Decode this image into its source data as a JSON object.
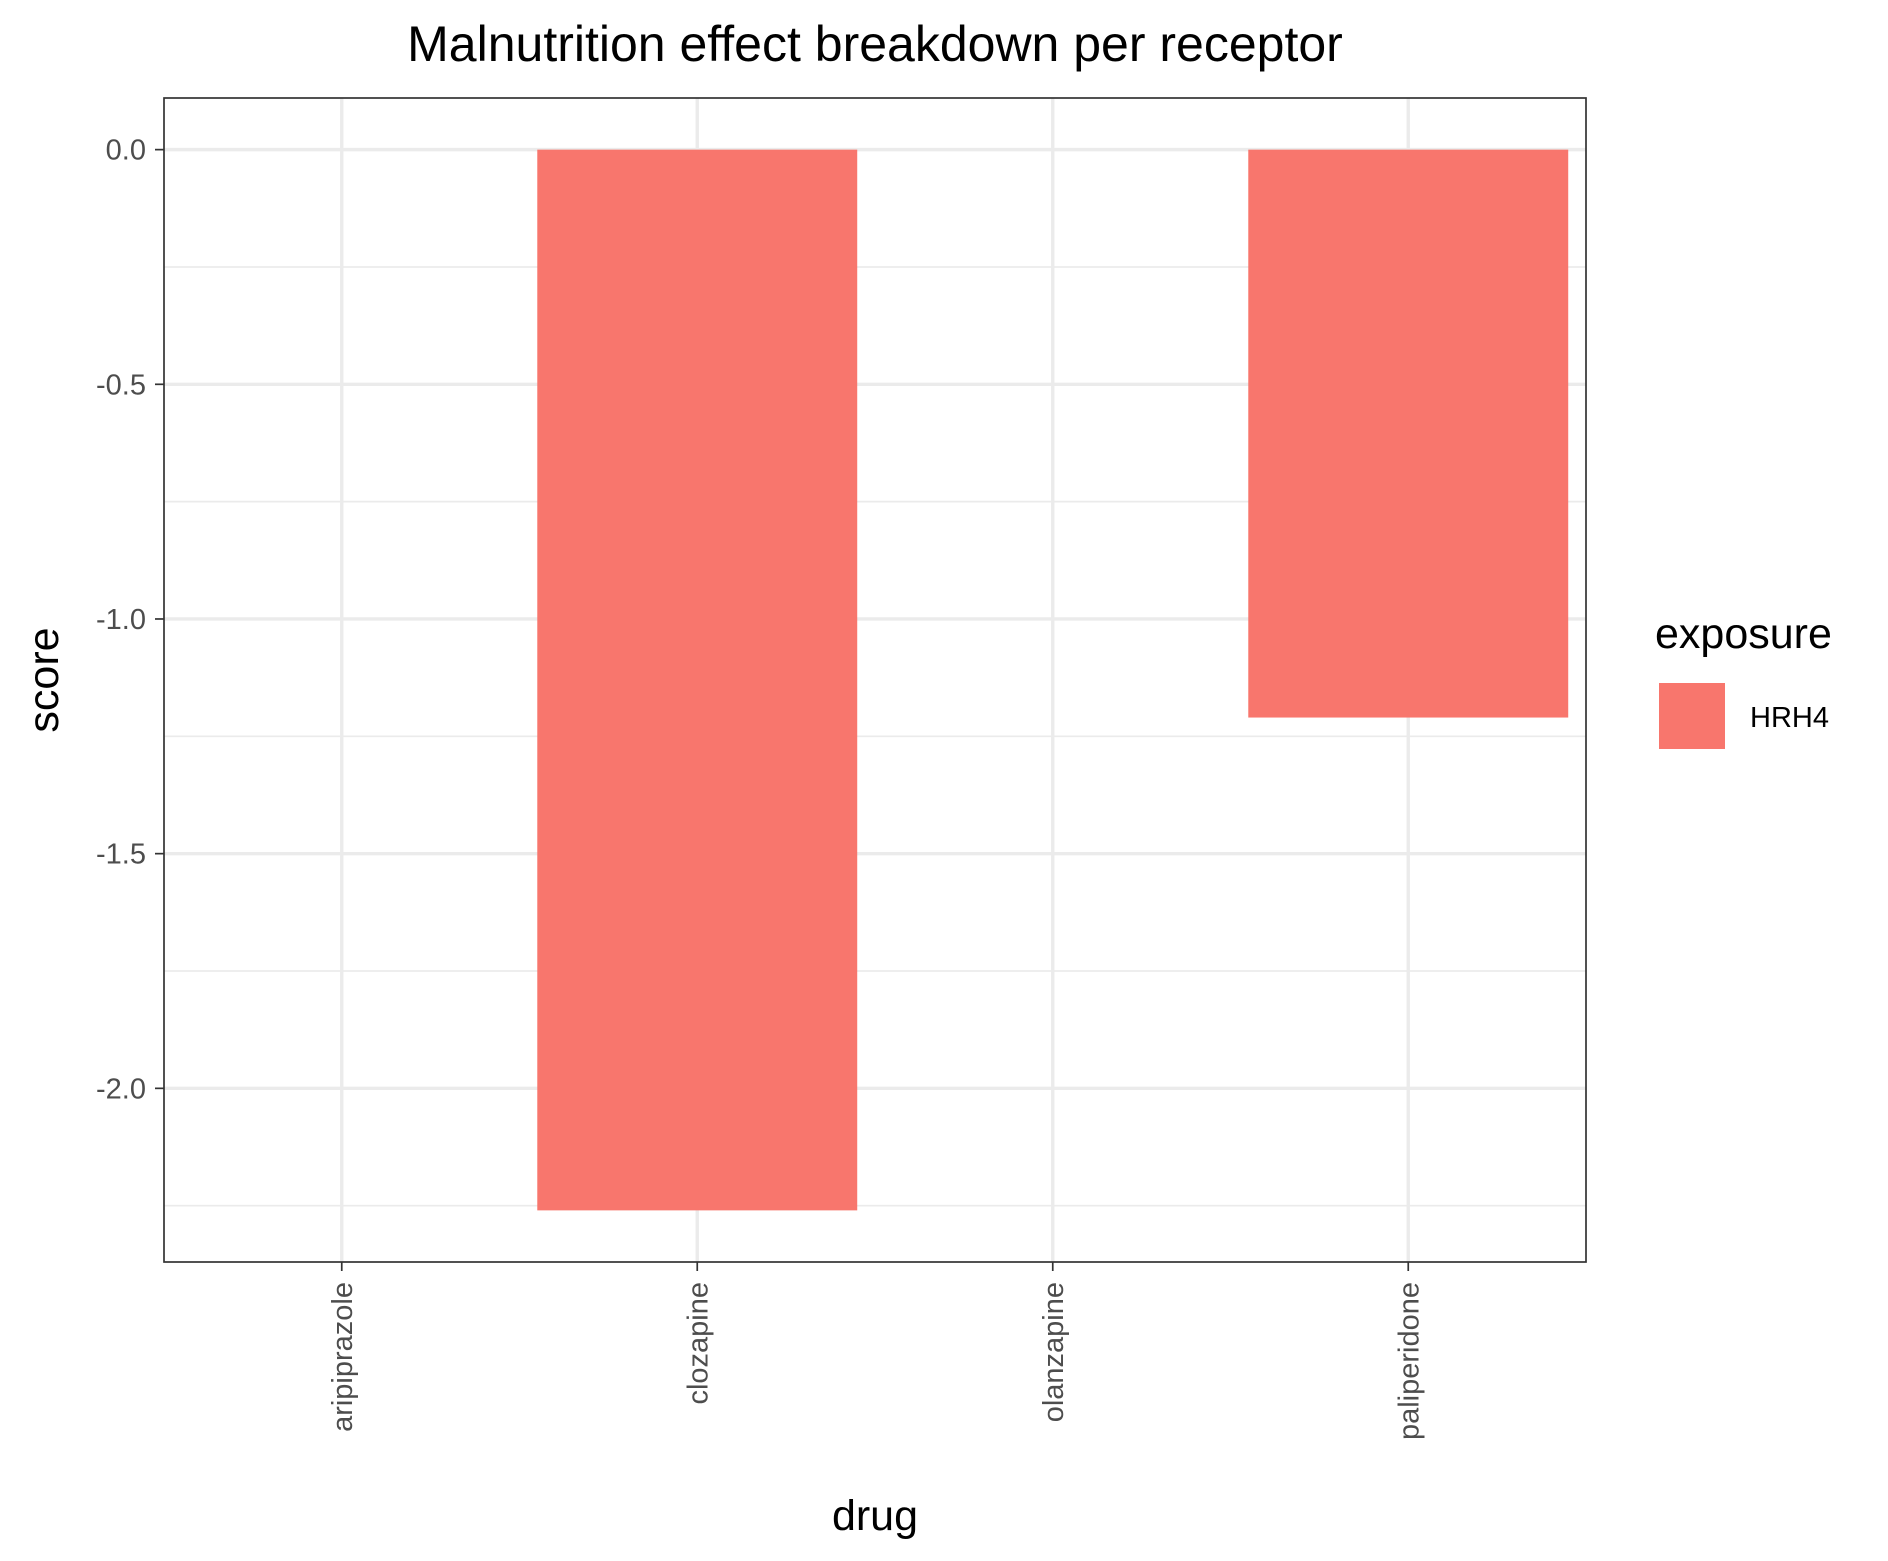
{
  "chart_data": {
    "type": "bar",
    "title": "Malnutrition effect breakdown per receptor",
    "xlabel": "drug",
    "ylabel": "score",
    "categories": [
      "aripiprazole",
      "clozapine",
      "olanzapine",
      "paliperidone"
    ],
    "series": [
      {
        "name": "HRH4",
        "values": [
          0,
          -2.26,
          0,
          -1.21
        ],
        "color": "#F8766D"
      }
    ],
    "ylim": [
      -2.37,
      0.11
    ],
    "y_ticks": [
      0.0,
      -0.5,
      -1.0,
      -1.5,
      -2.0
    ],
    "y_tick_labels": [
      "0.0",
      "-0.5",
      "-1.0",
      "-1.5",
      "-2.0"
    ],
    "grid": true,
    "legend": {
      "title": "exposure",
      "placement": "right"
    }
  }
}
